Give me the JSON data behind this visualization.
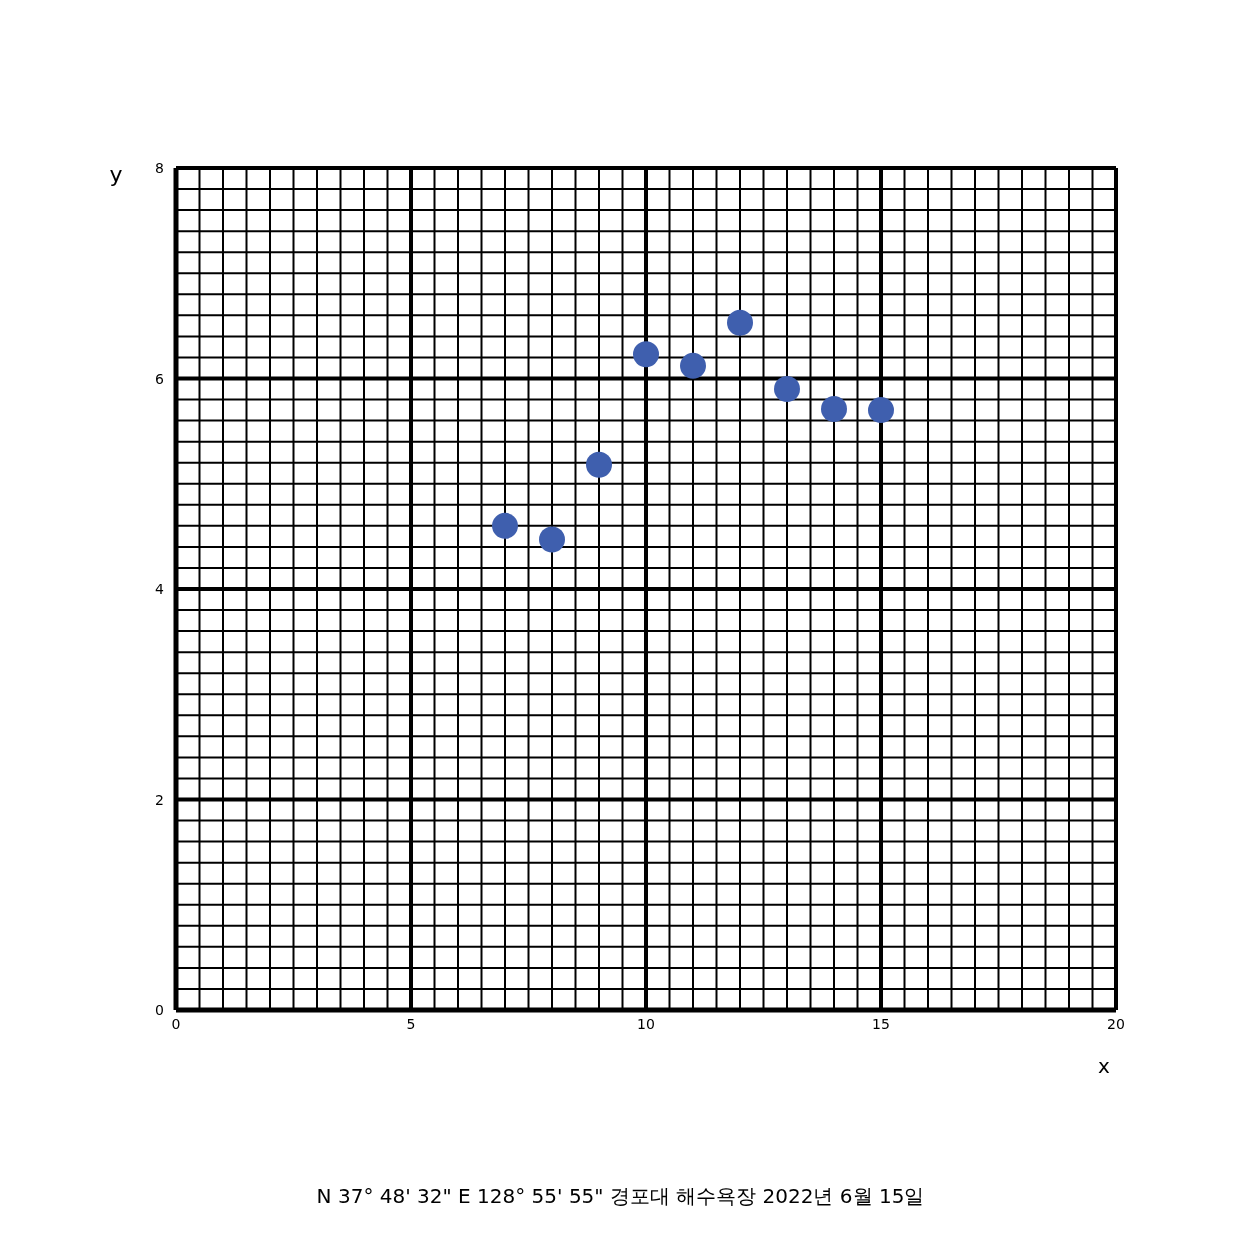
{
  "chart_data": {
    "type": "scatter",
    "xlabel": "x",
    "ylabel": "y",
    "x": [
      7,
      8,
      9,
      10,
      11,
      12,
      13,
      14,
      15
    ],
    "values": [
      4.6,
      4.47,
      5.18,
      6.23,
      6.12,
      6.53,
      5.9,
      5.71,
      5.7
    ],
    "color": "#3f5fae",
    "marker": "circle",
    "xlim": [
      0,
      20
    ],
    "xticks": [
      0,
      5,
      10,
      15,
      20
    ],
    "ylim": [
      0,
      8
    ],
    "yticks": [
      0,
      2,
      4,
      6,
      8
    ],
    "grid": true,
    "annotations": [
      "N 37° 48' 32\" E 128° 55' 55\" 경포대 해수욕장 2022년 6월 15일"
    ]
  }
}
